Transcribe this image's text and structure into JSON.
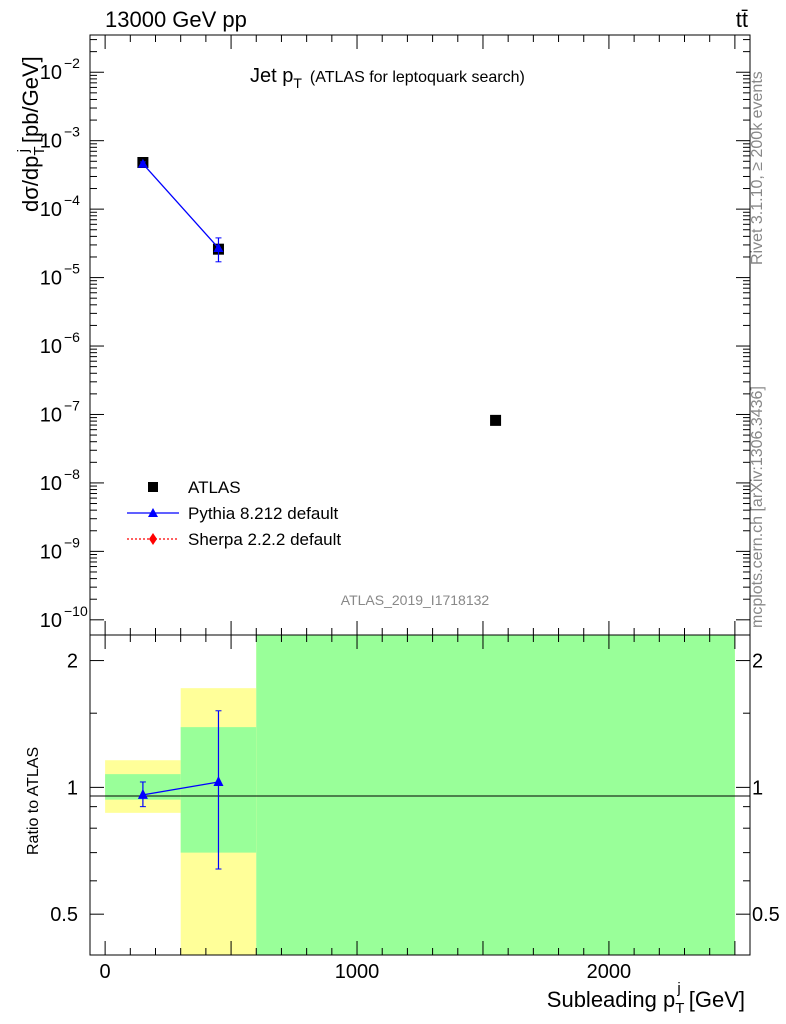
{
  "header": {
    "left": "13000 GeV pp",
    "right": "tt̄"
  },
  "side_labels": {
    "rivet": "Rivet 3.1.10, ≥ 200k events",
    "mcplots": "mcplots.cern.ch [arXiv:1306.3436]"
  },
  "analysis_id": "ATLAS_2019_I1718132",
  "chart_data": [
    {
      "type": "scatter",
      "panel": "main",
      "title_main": "Jet p",
      "title_sub": "T",
      "title_suffix": "(ATLAS for leptoquark search)",
      "ylabel": "dσ/dp",
      "ylabel_sub": "T",
      "ylabel_sup": "j",
      "ylabel_unit": "[pb/GeV]",
      "yscale": "log",
      "ylim": [
        6e-11,
        0.035
      ],
      "xlim": [
        -60,
        2560
      ],
      "y_tick_exponents": [
        -10,
        -9,
        -8,
        -7,
        -6,
        -5,
        -4,
        -3,
        -2
      ],
      "y_tick_labels": [
        "10",
        "10",
        "10",
        "10",
        "10",
        "10",
        "10",
        "10",
        "10"
      ],
      "y_tick_exp_labels": [
        "−10",
        "−9",
        "−8",
        "−7",
        "−6",
        "−5",
        "−4",
        "−3",
        "−2"
      ],
      "legend_position": "bottom-left",
      "series": [
        {
          "name": "ATLAS",
          "marker": "square",
          "color": "#000000",
          "points": [
            {
              "x": 150,
              "xlow": 0,
              "xhigh": 300,
              "y": 0.00048
            },
            {
              "x": 450,
              "xlow": 300,
              "xhigh": 600,
              "y": 2.6e-05
            },
            {
              "x": 1550,
              "xlow": 600,
              "xhigh": 2500,
              "y": 8.2e-08
            }
          ]
        },
        {
          "name": "Pythia 8.212 default",
          "marker": "triangle",
          "color": "#0000ff",
          "points": [
            {
              "x": 150,
              "y": 0.00046,
              "ylow": 0.00043,
              "yhigh": 0.00049
            },
            {
              "x": 450,
              "y": 2.7e-05,
              "ylow": 1.7e-05,
              "yhigh": 3.8e-05
            }
          ]
        },
        {
          "name": "Sherpa 2.2.2 default",
          "marker": "diamond",
          "color": "#ff0000",
          "points": []
        }
      ]
    },
    {
      "type": "scatter",
      "panel": "ratio",
      "ylabel": "Ratio to ATLAS",
      "xlabel": "Subleading p",
      "xlabel_sub": "T",
      "xlabel_sup": "j",
      "xlabel_unit": "[GeV]",
      "yscale": "log",
      "ylim": [
        0.4,
        2.3
      ],
      "xlim": [
        -60,
        2560
      ],
      "y_ticks": [
        0.5,
        1,
        2
      ],
      "y_tick_labels": [
        "0.5",
        "1",
        "2"
      ],
      "x_ticks": [
        0,
        1000,
        2000
      ],
      "x_tick_labels": [
        "0",
        "1000",
        "2000"
      ],
      "bands": [
        {
          "xlow": 0,
          "xhigh": 300,
          "yellow": [
            0.87,
            1.16
          ],
          "green": [
            0.935,
            1.075
          ]
        },
        {
          "xlow": 300,
          "xhigh": 600,
          "yellow": [
            0.4,
            1.72
          ],
          "green": [
            0.7,
            1.39
          ]
        },
        {
          "xlow": 600,
          "xhigh": 2500,
          "yellow": [
            0.4,
            2.3
          ],
          "green": [
            0.4,
            2.3
          ]
        }
      ],
      "series": [
        {
          "name": "Pythia 8.212 default",
          "color": "#0000ff",
          "points": [
            {
              "x": 150,
              "y": 0.96,
              "ylow": 0.9,
              "yhigh": 1.03
            },
            {
              "x": 450,
              "y": 1.03,
              "ylow": 0.64,
              "yhigh": 1.52
            }
          ]
        }
      ]
    }
  ]
}
